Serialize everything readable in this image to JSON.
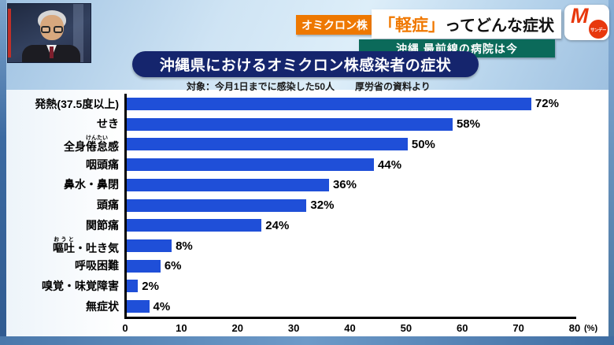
{
  "header": {
    "badge_label": "オミクロン株",
    "headline_highlight": "「軽症」",
    "headline_rest": "ってどんな症状",
    "subheadline": "沖縄 最前線の病院は今",
    "logo_m": "M",
    "logo_sub": "サンデー"
  },
  "chart_data": {
    "type": "bar",
    "orientation": "horizontal",
    "title": "沖縄県におけるオミクロン株感染者の症状",
    "notes": [
      "対象：今月1日までに感染した50人",
      "厚労省の資料より"
    ],
    "categories": [
      "発熱(37.5度以上)",
      "せき",
      "全身倦怠感",
      "咽頭痛",
      "鼻水・鼻閉",
      "頭痛",
      "関節痛",
      "嘔吐・吐き気",
      "呼吸困難",
      "嗅覚・味覚障害",
      "無症状"
    ],
    "values": [
      72,
      58,
      50,
      44,
      36,
      32,
      24,
      8,
      6,
      2,
      4
    ],
    "value_suffix": "%",
    "furigana": {
      "倦怠": "けんたい",
      "嘔吐": "おうと"
    },
    "xlim": [
      0,
      80
    ],
    "x_ticks": [
      0,
      10,
      20,
      30,
      40,
      50,
      60,
      70,
      80
    ],
    "x_unit": "(%)",
    "bar_color": "#1f4fd8",
    "grid": false,
    "legend": false
  },
  "colors": {
    "bar_blue": "#1f4fd8",
    "badge_orange": "#ee7800",
    "headline_orange": "#f07800",
    "title_navy": "#15256d",
    "subhead_teal": "#0b6a5a",
    "logo_red": "#e8380d"
  }
}
